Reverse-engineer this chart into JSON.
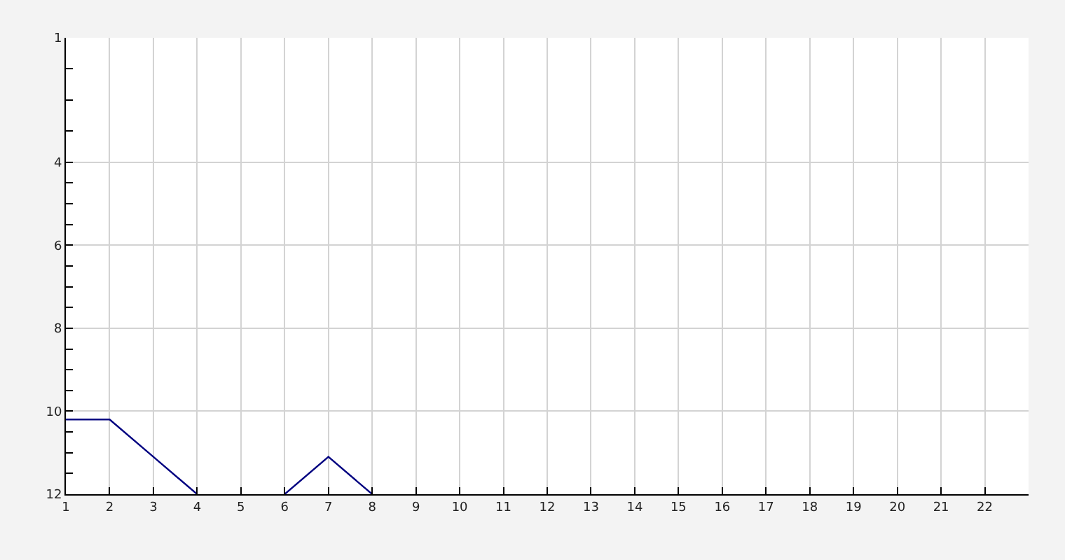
{
  "chart_data": {
    "type": "line",
    "x": [
      1,
      2,
      3,
      4,
      5,
      6,
      7,
      8
    ],
    "series": [
      {
        "color": "#000080",
        "values": [
          10.2,
          10.2,
          11.1,
          12,
          null,
          12,
          11.1,
          12
        ]
      }
    ],
    "xlim": [
      1,
      23
    ],
    "xticks": [
      1,
      2,
      3,
      4,
      5,
      6,
      7,
      8,
      9,
      10,
      11,
      12,
      13,
      14,
      15,
      16,
      17,
      18,
      19,
      20,
      21,
      22
    ],
    "ylim": [
      12,
      1
    ],
    "yticks": [
      1,
      {
        "value": 1.75,
        "label": null
      },
      {
        "value": 2.5,
        "label": null
      },
      {
        "value": 3.25,
        "label": null
      },
      4,
      {
        "value": 4.5,
        "label": null
      },
      {
        "value": 5,
        "label": null
      },
      {
        "value": 5.5,
        "label": null
      },
      6,
      {
        "value": 6.5,
        "label": null
      },
      {
        "value": 7,
        "label": null
      },
      {
        "value": 7.5,
        "label": null
      },
      8,
      {
        "value": 8.5,
        "label": null
      },
      {
        "value": 9,
        "label": null
      },
      {
        "value": 9.5,
        "label": null
      },
      10,
      {
        "value": 10.5,
        "label": null
      },
      {
        "value": 11,
        "label": null
      },
      {
        "value": 11.5,
        "label": null
      },
      12
    ],
    "grid": true,
    "marker": "none",
    "line_style": "solid"
  }
}
